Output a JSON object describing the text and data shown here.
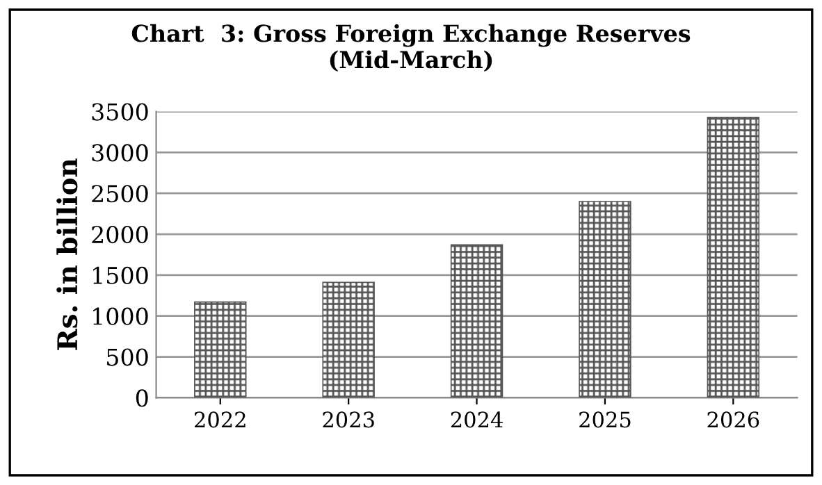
{
  "chart_data": {
    "type": "bar",
    "title": "Chart  3: Gross Foreign Exchange Reserves\n(Mid-March)",
    "ylabel": "Rs. in billion",
    "categories": [
      "2022",
      "2023",
      "2024",
      "2025",
      "2026"
    ],
    "values": [
      1170,
      1410,
      1870,
      2400,
      3430
    ],
    "color": "#555555",
    "ylim": [
      0,
      3500
    ],
    "yticks": [
      0,
      500,
      1000,
      1500,
      2000,
      2500,
      3000,
      3500
    ],
    "grid": "y",
    "legend": false
  }
}
